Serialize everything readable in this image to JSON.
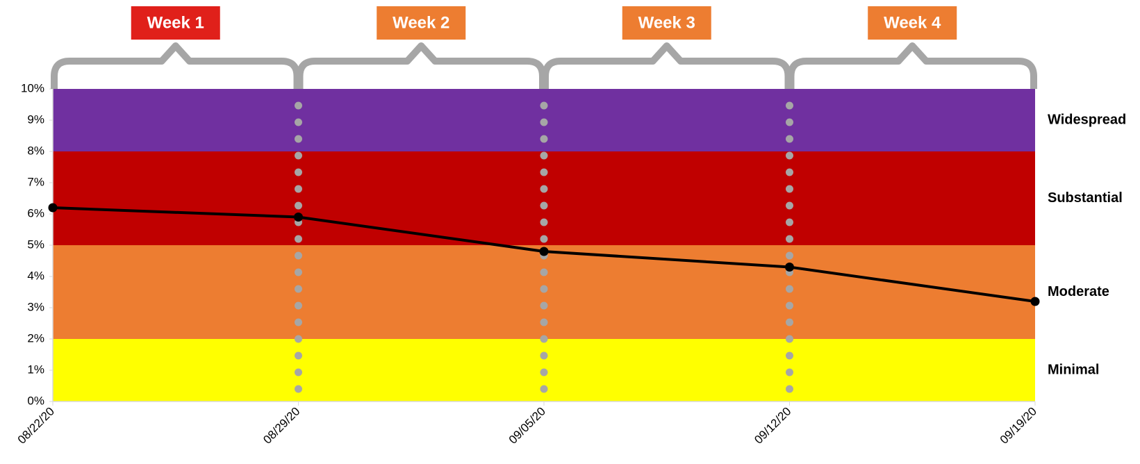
{
  "chart_data": {
    "type": "line",
    "categories": [
      "08/22/20",
      "08/29/20",
      "09/05/20",
      "09/12/20",
      "09/19/20"
    ],
    "values": [
      6.2,
      5.9,
      4.8,
      4.3,
      3.2
    ],
    "color": "#000000",
    "ylim": [
      0,
      10
    ],
    "yticks": [
      {
        "value": 0,
        "label": "0%"
      },
      {
        "value": 1,
        "label": "1%"
      },
      {
        "value": 2,
        "label": "2%"
      },
      {
        "value": 3,
        "label": "3%"
      },
      {
        "value": 4,
        "label": "4%"
      },
      {
        "value": 5,
        "label": "5%"
      },
      {
        "value": 6,
        "label": "6%"
      },
      {
        "value": 7,
        "label": "7%"
      },
      {
        "value": 8,
        "label": "8%"
      },
      {
        "value": 9,
        "label": "9%"
      },
      {
        "value": 10,
        "label": "10%"
      }
    ],
    "bands": [
      {
        "name": "Minimal",
        "range": [
          0,
          2
        ],
        "color": "#ffff00"
      },
      {
        "name": "Moderate",
        "range": [
          2,
          5
        ],
        "color": "#ed7d31"
      },
      {
        "name": "Substantial",
        "range": [
          5,
          8
        ],
        "color": "#c00000"
      },
      {
        "name": "Widespread",
        "range": [
          8,
          10
        ],
        "color": "#7030a0"
      }
    ],
    "periods": [
      {
        "label": "Week 1",
        "color": "#e0201a"
      },
      {
        "label": "Week 2",
        "color": "#ed7d31"
      },
      {
        "label": "Week 3",
        "color": "#ed7d31"
      },
      {
        "label": "Week 4",
        "color": "#ed7d31"
      }
    ]
  }
}
